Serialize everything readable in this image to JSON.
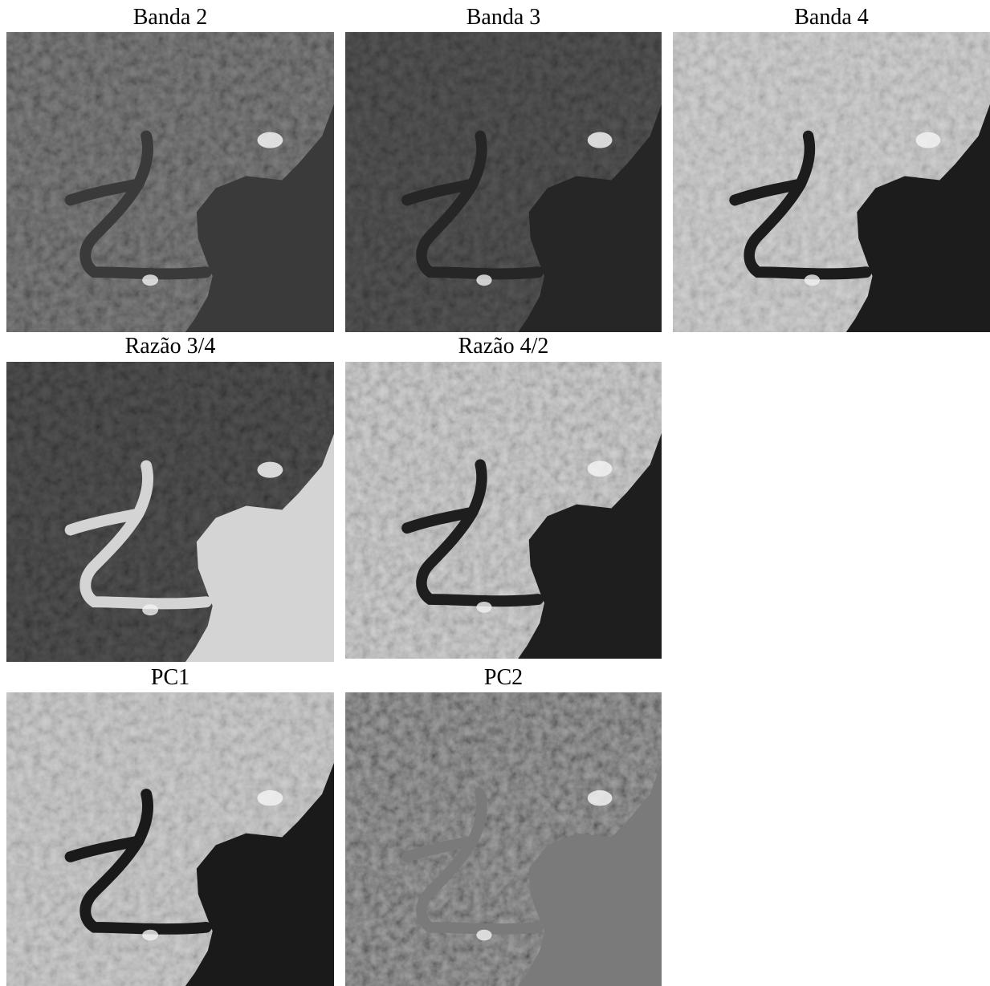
{
  "panels": [
    {
      "title": "Banda 2"
    },
    {
      "title": "Banda 3"
    },
    {
      "title": "Banda 4"
    },
    {
      "title": "Razão 3/4"
    },
    {
      "title": "Razão 4/2"
    },
    {
      "title": "PC1"
    },
    {
      "title": "PC2"
    }
  ]
}
